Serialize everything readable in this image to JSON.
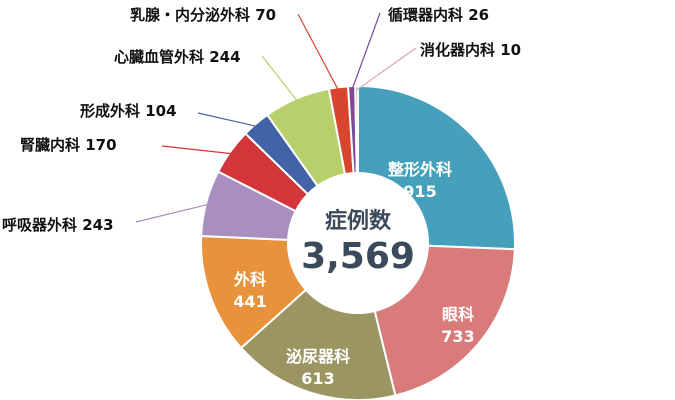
{
  "chart_data": {
    "type": "pie",
    "donut": true,
    "center_label": "症例数",
    "center_value": "3,569",
    "categories": [
      "整形外科",
      "眼科",
      "泌尿器科",
      "外科",
      "呼吸器外科",
      "腎臓内科",
      "形成外科",
      "心臓血管外科",
      "乳腺・内分泌外科",
      "循環器内科",
      "消化器内科"
    ],
    "values": [
      915,
      733,
      613,
      441,
      243,
      170,
      104,
      244,
      70,
      26,
      10
    ],
    "colors": [
      "#46a0bb",
      "#d97a7b",
      "#9a9561",
      "#e8923c",
      "#a98ec0",
      "#d2363a",
      "#4363a7",
      "#b8d06b",
      "#d8452f",
      "#7d4a96",
      "#d9a3ae"
    ],
    "labels": [
      {
        "name": "整形外科",
        "value": "915"
      },
      {
        "name": "眼科",
        "value": "733"
      },
      {
        "name": "泌尿器科",
        "value": "613"
      },
      {
        "name": "外科",
        "value": "441"
      },
      {
        "name": "呼吸器外科",
        "value": "243"
      },
      {
        "name": "腎臓内科",
        "value": "170"
      },
      {
        "name": "形成外科",
        "value": "104"
      },
      {
        "name": "心臓血管外科",
        "value": "244"
      },
      {
        "name": "乳腺・内分泌外科",
        "value": "70"
      },
      {
        "name": "循環器内科",
        "value": "26"
      },
      {
        "name": "消化器内科",
        "value": "10"
      }
    ]
  }
}
